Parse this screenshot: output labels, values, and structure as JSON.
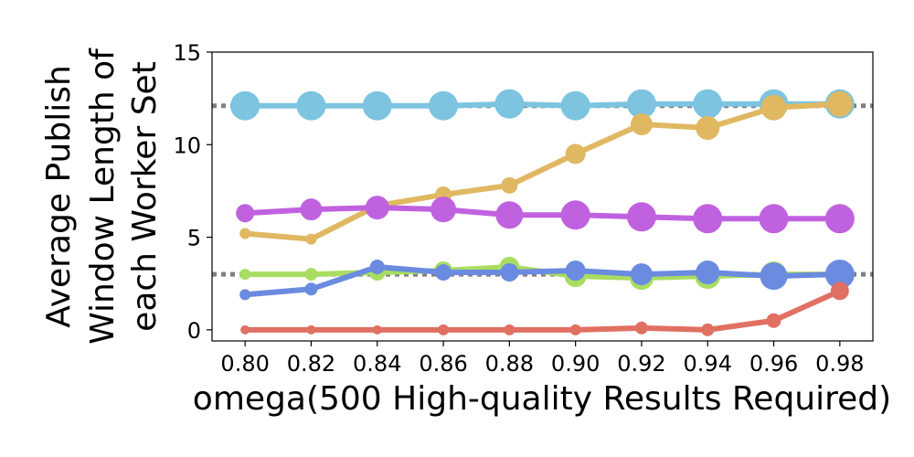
{
  "chart_data": {
    "type": "line",
    "title": "",
    "xlabel": "omega(500 High-quality Results Required)",
    "ylabel_lines": [
      "Average Publish",
      "Window Length of",
      "each Worker Set"
    ],
    "x": [
      0.8,
      0.82,
      0.84,
      0.86,
      0.88,
      0.9,
      0.92,
      0.94,
      0.96,
      0.98
    ],
    "x_tick_labels": [
      "0.80",
      "0.82",
      "0.84",
      "0.86",
      "0.88",
      "0.90",
      "0.92",
      "0.94",
      "0.96",
      "0.98"
    ],
    "xlim": [
      0.79,
      0.99
    ],
    "ylim": [
      -0.6,
      15
    ],
    "y_ticks": [
      0,
      5,
      10,
      15
    ],
    "y_tick_labels": [
      "0",
      "5",
      "10",
      "15"
    ],
    "grid": false,
    "reference_lines": [
      {
        "y": 12.1,
        "color": "#808080",
        "style": "dotted"
      },
      {
        "y": 3.0,
        "color": "#808080",
        "style": "dotted"
      }
    ],
    "series": [
      {
        "color": "#7cc4df",
        "values": [
          12.1,
          12.1,
          12.1,
          12.1,
          12.2,
          12.1,
          12.2,
          12.2,
          12.2,
          12.2
        ],
        "marker_sizes": [
          16,
          16,
          16,
          16,
          16,
          16,
          16,
          16,
          16,
          16
        ]
      },
      {
        "color": "#e0b862",
        "values": [
          5.2,
          4.9,
          6.7,
          7.3,
          7.8,
          9.5,
          11.1,
          10.9,
          12.0,
          12.2
        ],
        "marker_sizes": [
          6,
          6,
          9,
          9,
          9,
          11,
          12,
          13,
          14,
          14
        ]
      },
      {
        "color": "#c062e0",
        "values": [
          6.3,
          6.5,
          6.6,
          6.5,
          6.2,
          6.2,
          6.1,
          6.0,
          6.0,
          6.0
        ],
        "marker_sizes": [
          10,
          12,
          13,
          14,
          15,
          16,
          16,
          16,
          16,
          16
        ]
      },
      {
        "color": "#a8dd62",
        "values": [
          3.0,
          3.0,
          3.1,
          3.2,
          3.4,
          2.9,
          2.8,
          2.9,
          3.0,
          3.0
        ],
        "marker_sizes": [
          6,
          7,
          9,
          10,
          11,
          12,
          13,
          14,
          14,
          15
        ]
      },
      {
        "color": "#6a8be0",
        "values": [
          1.9,
          2.2,
          3.4,
          3.1,
          3.1,
          3.2,
          3.0,
          3.1,
          2.9,
          3.0
        ],
        "marker_sizes": [
          6,
          7,
          8,
          9,
          10,
          11,
          12,
          13,
          15,
          16
        ]
      },
      {
        "color": "#e07062",
        "values": [
          0.0,
          0.0,
          0.0,
          0.0,
          0.0,
          0.0,
          0.1,
          0.0,
          0.5,
          2.1
        ],
        "marker_sizes": [
          5,
          5,
          5,
          6,
          6,
          6,
          7,
          7,
          8,
          10
        ]
      }
    ]
  }
}
